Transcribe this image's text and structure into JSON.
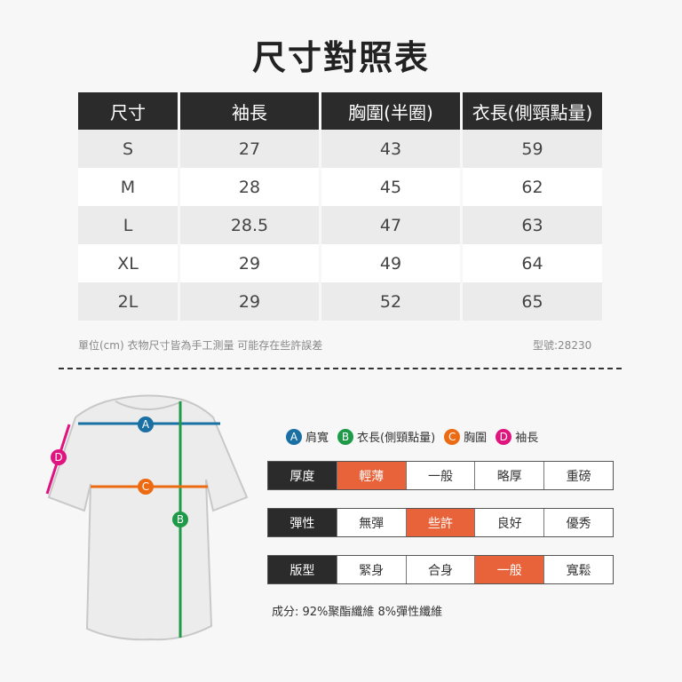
{
  "title": "尺寸對照表",
  "table": {
    "headers": [
      "尺寸",
      "袖長",
      "胸圍(半圈)",
      "衣長(側頸點量)"
    ],
    "rows": [
      [
        "S",
        "27",
        "43",
        "59"
      ],
      [
        "M",
        "28",
        "45",
        "62"
      ],
      [
        "L",
        "28.5",
        "47",
        "63"
      ],
      [
        "XL",
        "29",
        "49",
        "64"
      ],
      [
        "2L",
        "29",
        "52",
        "65"
      ]
    ]
  },
  "note": "單位(cm)  衣物尺寸皆為手工測量 可能存在些許誤差",
  "model": "型號:28230",
  "legend": [
    {
      "key": "A",
      "label": "肩寬",
      "color": "#1a6fa3"
    },
    {
      "key": "B",
      "label": "衣長(側頸點量)",
      "color": "#1f9a48"
    },
    {
      "key": "C",
      "label": "胸圍",
      "color": "#ec6b12"
    },
    {
      "key": "D",
      "label": "袖長",
      "color": "#e0147f"
    }
  ],
  "properties": [
    {
      "label": "厚度",
      "options": [
        "輕薄",
        "一般",
        "略厚",
        "重磅"
      ],
      "selected": "輕薄"
    },
    {
      "label": "彈性",
      "options": [
        "無彈",
        "些許",
        "良好",
        "優秀"
      ],
      "selected": "些許"
    },
    {
      "label": "版型",
      "options": [
        "緊身",
        "合身",
        "一般",
        "寬鬆"
      ],
      "selected": "一般"
    }
  ],
  "composition": "成分: 92%聚酯纖維 8%彈性纖維",
  "accent_color": "#e8633a"
}
